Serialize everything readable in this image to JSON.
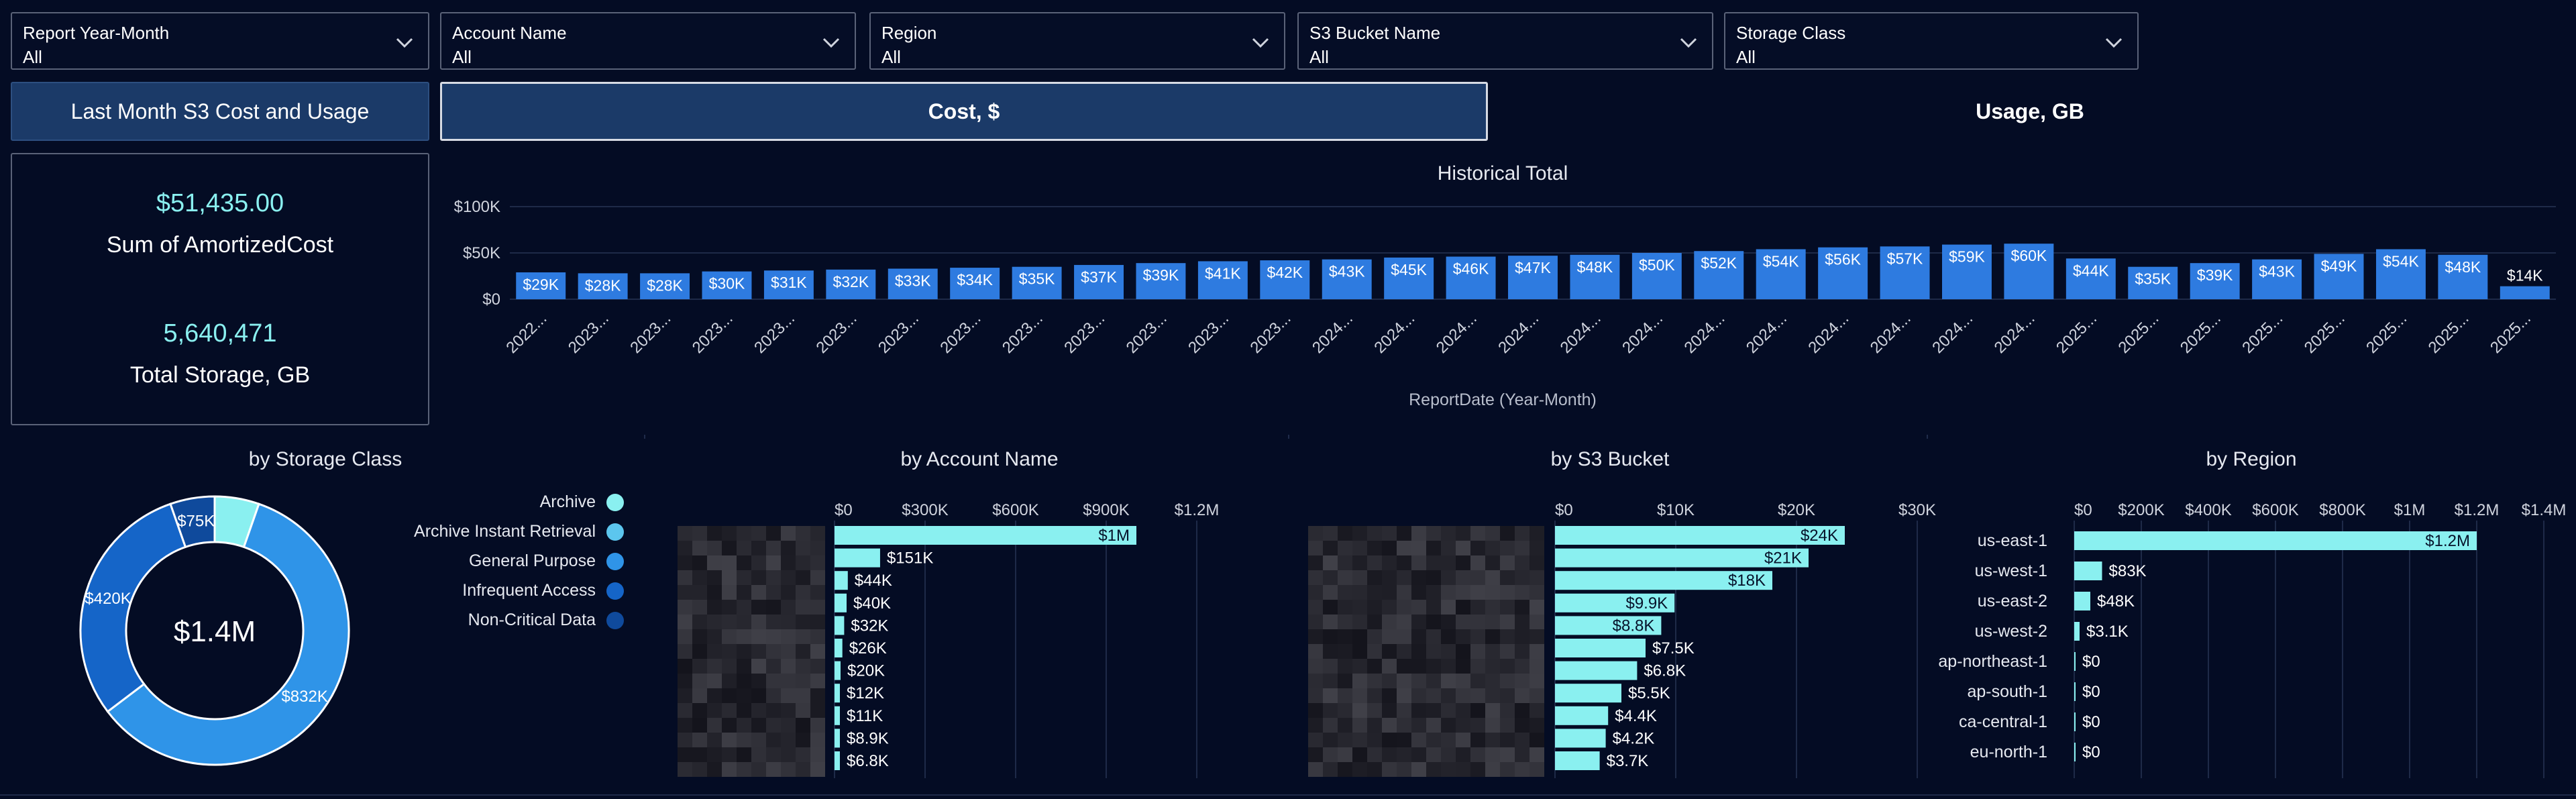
{
  "filters": [
    {
      "label": "Report Year-Month",
      "value": "All"
    },
    {
      "label": "Account Name",
      "value": "All"
    },
    {
      "label": "Region",
      "value": "All"
    },
    {
      "label": "S3 Bucket Name",
      "value": "All"
    },
    {
      "label": "Storage Class",
      "value": "All"
    }
  ],
  "tabs": {
    "title": "Last Month S3 Cost and Usage",
    "cost": "Cost, $",
    "usage": "Usage, GB"
  },
  "kpi": {
    "cost_value": "$51,435.00",
    "cost_label": "Sum of AmortizedCost",
    "storage_value": "5,640,471",
    "storage_label": "Total Storage, GB"
  },
  "colors": {
    "accent": "#8af0f0",
    "bar": "#2e7be0",
    "background": "#040c24"
  },
  "chart_data": [
    {
      "type": "bar",
      "title": "Historical Total",
      "xlabel": "ReportDate (Year-Month)",
      "ylabel": "",
      "y_ticks": [
        "$0",
        "$50K",
        "$100K"
      ],
      "ylim": [
        0,
        100
      ],
      "categories": [
        "2022...",
        "2023...",
        "2023...",
        "2023...",
        "2023...",
        "2023...",
        "2023...",
        "2023...",
        "2023...",
        "2023...",
        "2023...",
        "2023...",
        "2023...",
        "2024...",
        "2024...",
        "2024...",
        "2024...",
        "2024...",
        "2024...",
        "2024...",
        "2024...",
        "2024...",
        "2024...",
        "2024...",
        "2024...",
        "2025...",
        "2025...",
        "2025...",
        "2025...",
        "2025...",
        "2025...",
        "2025...",
        "2025..."
      ],
      "values": [
        29,
        28,
        28,
        30,
        31,
        32,
        33,
        34,
        35,
        37,
        39,
        41,
        42,
        43,
        45,
        46,
        47,
        48,
        50,
        52,
        54,
        56,
        57,
        59,
        60,
        44,
        35,
        39,
        43,
        49,
        54,
        48,
        14
      ],
      "labels": [
        "$29K",
        "$28K",
        "$28K",
        "$30K",
        "$31K",
        "$32K",
        "$33K",
        "$34K",
        "$35K",
        "$37K",
        "$39K",
        "$41K",
        "$42K",
        "$43K",
        "$45K",
        "$46K",
        "$47K",
        "$48K",
        "$50K",
        "$52K",
        "$54K",
        "$56K",
        "$57K",
        "$59K",
        "$60K",
        "$44K",
        "$35K",
        "$39K",
        "$43K",
        "$49K",
        "$54K",
        "$48K",
        "$14K"
      ]
    },
    {
      "type": "pie",
      "title": "by Storage Class",
      "center_label": "$1.4M",
      "slices": [
        {
          "name": "Archive",
          "value": 75,
          "label": "",
          "color": "#8af0f0"
        },
        {
          "name": "General Purpose",
          "value": 832,
          "label": "$832K",
          "color": "#2f94e8"
        },
        {
          "name": "Infrequent Access",
          "value": 420,
          "label": "$420K",
          "color": "#1565c8"
        },
        {
          "name": "Non-Critical Data",
          "value": 75,
          "label": "$75K",
          "color": "#0f4a9c"
        }
      ],
      "legend": [
        {
          "name": "Archive",
          "color": "#8af0f0"
        },
        {
          "name": "Archive Instant Retrieval",
          "color": "#5cc6ee"
        },
        {
          "name": "General Purpose",
          "color": "#2f94e8"
        },
        {
          "name": "Infrequent Access",
          "color": "#1565c8"
        },
        {
          "name": "Non-Critical Data",
          "color": "#0f4a9c"
        }
      ]
    },
    {
      "type": "bar",
      "orientation": "horizontal",
      "title": "by Account Name",
      "x_ticks": [
        "$0",
        "$300K",
        "$600K",
        "$900K",
        "$1.2M"
      ],
      "xlim": [
        0,
        1200
      ],
      "values": [
        1000,
        151,
        44,
        40,
        32,
        26,
        20,
        12,
        11,
        8.9,
        6.8
      ],
      "labels": [
        "$1M",
        "$151K",
        "$44K",
        "$40K",
        "$32K",
        "$26K",
        "$20K",
        "$12K",
        "$11K",
        "$8.9K",
        "$6.8K"
      ]
    },
    {
      "type": "bar",
      "orientation": "horizontal",
      "title": "by S3 Bucket",
      "x_ticks": [
        "$0",
        "$10K",
        "$20K",
        "$30K"
      ],
      "xlim": [
        0,
        30
      ],
      "values": [
        24,
        21,
        18,
        9.9,
        8.8,
        7.5,
        6.8,
        5.5,
        4.4,
        4.2,
        3.7
      ],
      "labels": [
        "$24K",
        "$21K",
        "$18K",
        "$9.9K",
        "$8.8K",
        "$7.5K",
        "$6.8K",
        "$5.5K",
        "$4.4K",
        "$4.2K",
        "$3.7K"
      ]
    },
    {
      "type": "bar",
      "orientation": "horizontal",
      "title": "by Region",
      "x_ticks": [
        "$0",
        "$200K",
        "$400K",
        "$600K",
        "$800K",
        "$1M",
        "$1.2M",
        "$1.4M"
      ],
      "xlim": [
        0,
        1400
      ],
      "categories": [
        "us-east-1",
        "us-west-1",
        "us-east-2",
        "us-west-2",
        "ap-northeast-1",
        "ap-south-1",
        "ca-central-1",
        "eu-north-1"
      ],
      "values": [
        1200,
        83,
        48,
        3.1,
        0,
        0,
        0,
        0
      ],
      "labels": [
        "$1.2M",
        "$83K",
        "$48K",
        "$3.1K",
        "$0",
        "$0",
        "$0",
        "$0"
      ]
    }
  ]
}
